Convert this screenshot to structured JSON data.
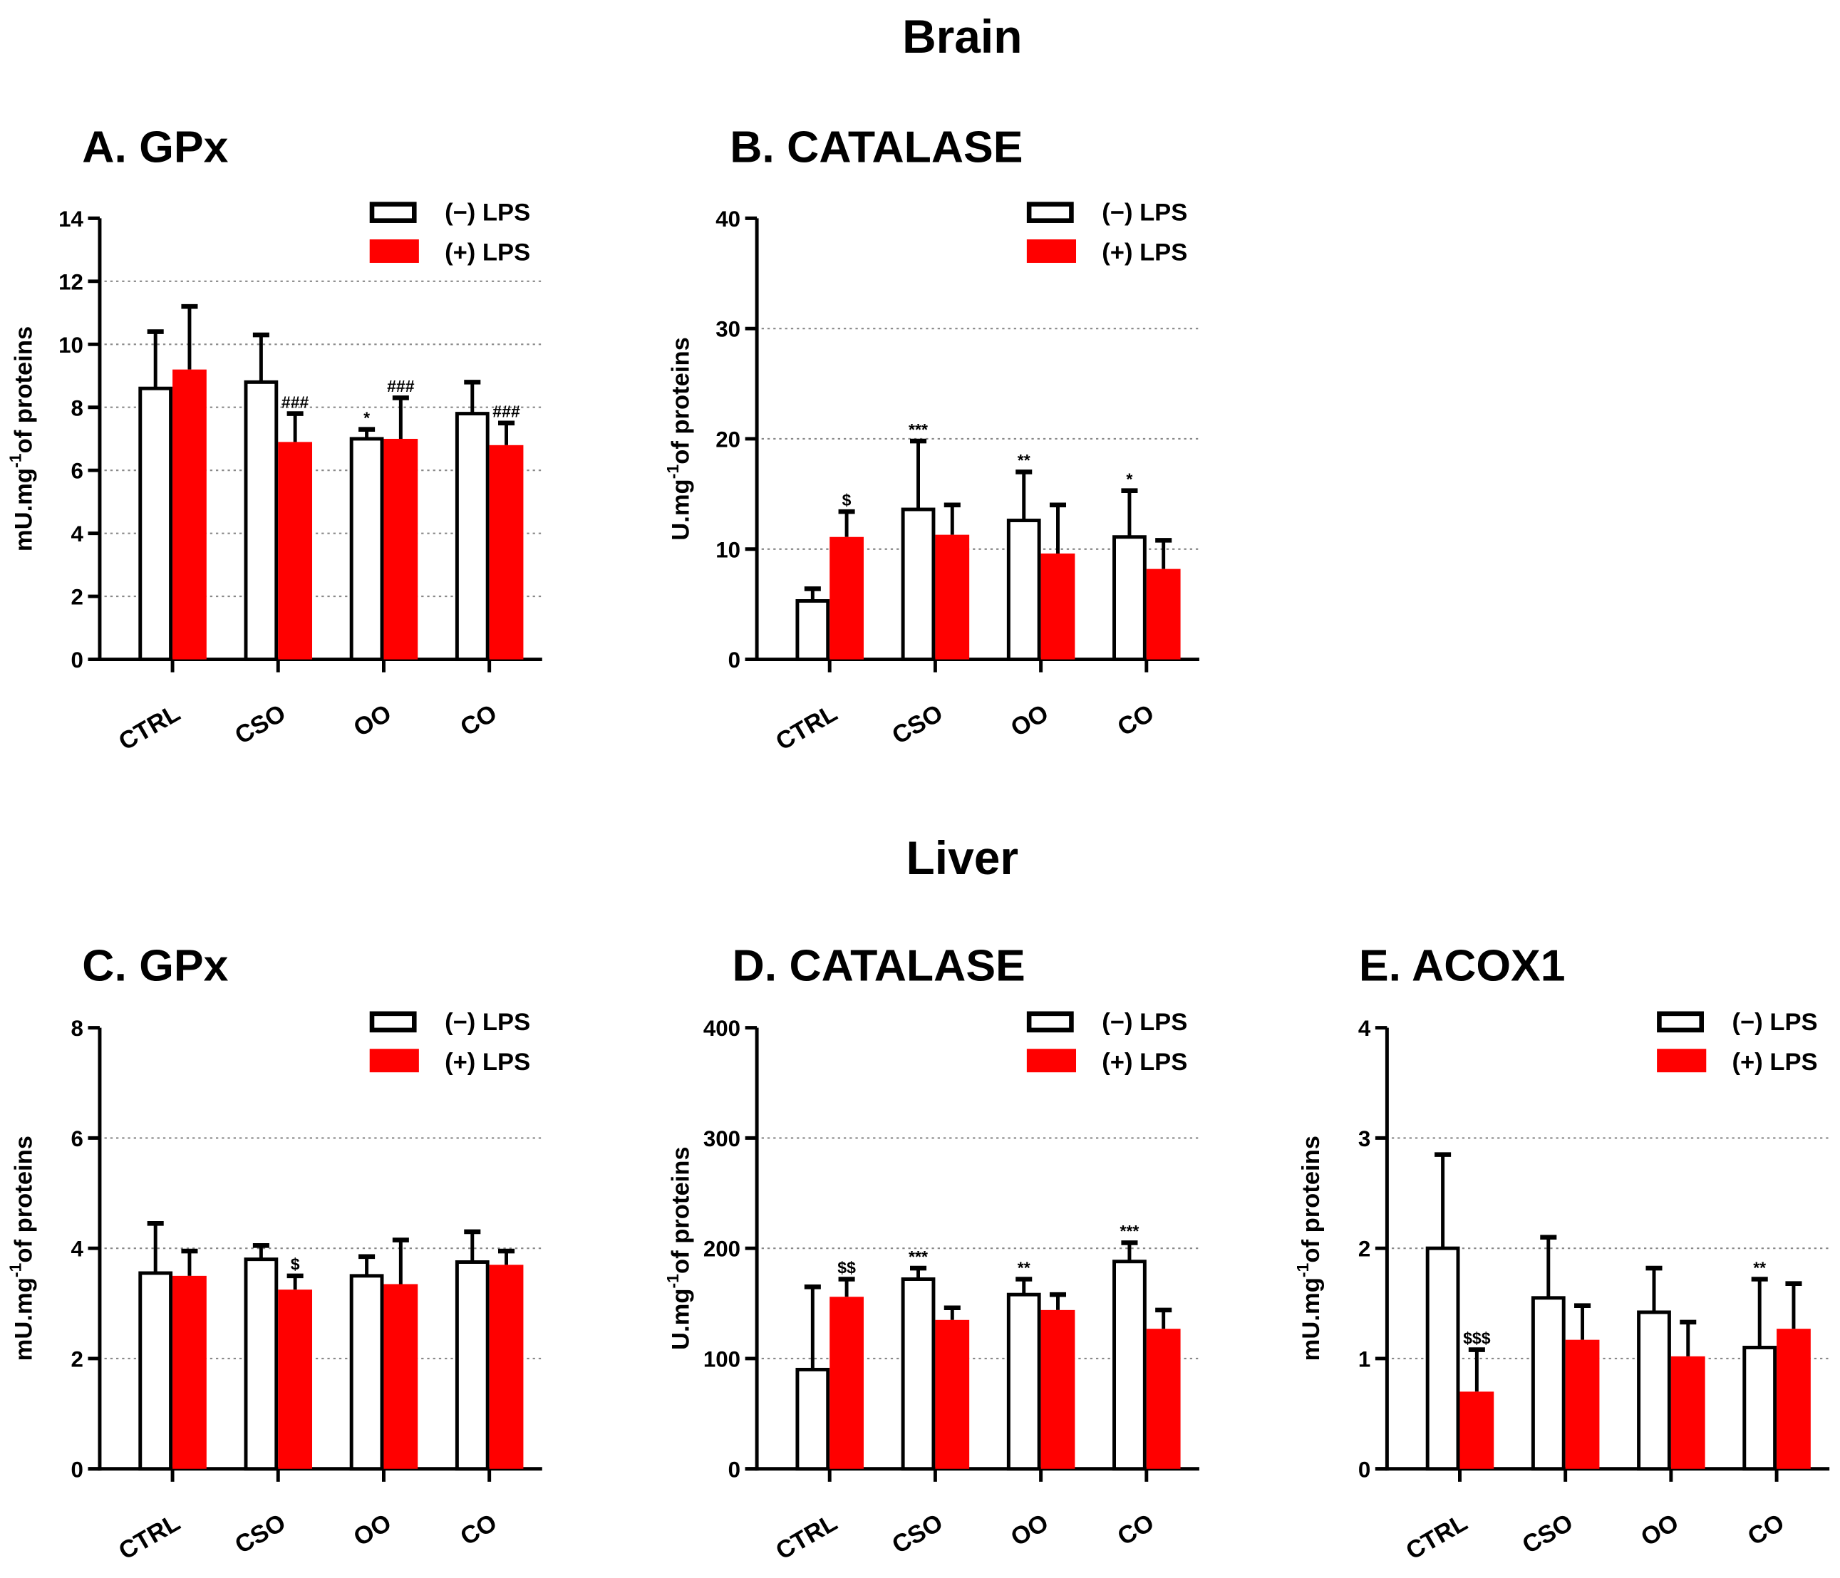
{
  "section_titles": [
    "Brain",
    "Liver"
  ],
  "legend": {
    "minus": "(−) LPS",
    "plus": "(+) LPS"
  },
  "colors": {
    "minus_fill": "#ffffff",
    "plus_fill": "#ff0000",
    "axis": "#000000",
    "grid": "#888888"
  },
  "chart_data": [
    {
      "type": "bar",
      "panel": "A",
      "section": "Brain",
      "title": "A. GPx",
      "ylabel": {
        "prefix": "mU.mg",
        "sup": "-1",
        "suffix": "of proteins"
      },
      "categories": [
        "CTRL",
        "CSO",
        "OO",
        "CO"
      ],
      "ylim": [
        0,
        14
      ],
      "yticks": [
        0,
        2,
        4,
        6,
        8,
        10,
        12,
        14
      ],
      "grid": true,
      "legend_position": "top-right",
      "series": [
        {
          "name": "(−) LPS",
          "values": [
            8.6,
            8.8,
            7.0,
            7.8
          ],
          "error_upper": [
            10.4,
            10.3,
            7.3,
            8.8
          ],
          "annotations": [
            "",
            "",
            "*",
            ""
          ]
        },
        {
          "name": "(+) LPS",
          "values": [
            9.2,
            6.9,
            7.0,
            6.8
          ],
          "error_upper": [
            11.2,
            7.8,
            8.3,
            7.5
          ],
          "annotations": [
            "",
            "###",
            "###",
            "###"
          ]
        }
      ]
    },
    {
      "type": "bar",
      "panel": "B",
      "section": "Brain",
      "title": "B. CATALASE",
      "ylabel": {
        "prefix": "U.mg",
        "sup": "-1",
        "suffix": "of proteins"
      },
      "categories": [
        "CTRL",
        "CSO",
        "OO",
        "CO"
      ],
      "ylim": [
        0,
        40
      ],
      "yticks": [
        0,
        10,
        20,
        30,
        40
      ],
      "grid": true,
      "legend_position": "top-right",
      "series": [
        {
          "name": "(−) LPS",
          "values": [
            5.3,
            13.6,
            12.6,
            11.1
          ],
          "error_upper": [
            6.4,
            19.8,
            17.0,
            15.3
          ],
          "annotations": [
            "",
            "***",
            "**",
            "*"
          ]
        },
        {
          "name": "(+) LPS",
          "values": [
            11.1,
            11.3,
            9.6,
            8.2
          ],
          "error_upper": [
            13.4,
            14.0,
            14.0,
            10.8
          ],
          "annotations": [
            "$",
            "",
            "",
            ""
          ]
        }
      ]
    },
    {
      "type": "bar",
      "panel": "C",
      "section": "Liver",
      "title": "C. GPx",
      "ylabel": {
        "prefix": "mU.mg",
        "sup": "-1",
        "suffix": "of proteins"
      },
      "categories": [
        "CTRL",
        "CSO",
        "OO",
        "CO"
      ],
      "ylim": [
        0,
        8
      ],
      "yticks": [
        0,
        2,
        4,
        6,
        8
      ],
      "grid": true,
      "legend_position": "top-right",
      "series": [
        {
          "name": "(−) LPS",
          "values": [
            3.55,
            3.8,
            3.5,
            3.75
          ],
          "error_upper": [
            4.45,
            4.05,
            3.85,
            4.3
          ],
          "annotations": [
            "",
            "",
            "",
            ""
          ]
        },
        {
          "name": "(+) LPS",
          "values": [
            3.5,
            3.25,
            3.35,
            3.7
          ],
          "error_upper": [
            3.95,
            3.5,
            4.15,
            3.95
          ],
          "annotations": [
            "",
            "$",
            "",
            ""
          ]
        }
      ]
    },
    {
      "type": "bar",
      "panel": "D",
      "section": "Liver",
      "title": "D. CATALASE",
      "ylabel": {
        "prefix": "U.mg",
        "sup": "-1",
        "suffix": "of proteins"
      },
      "categories": [
        "CTRL",
        "CSO",
        "OO",
        "CO"
      ],
      "ylim": [
        0,
        400
      ],
      "yticks": [
        0,
        100,
        200,
        300,
        400
      ],
      "grid": true,
      "legend_position": "top-right",
      "series": [
        {
          "name": "(−) LPS",
          "values": [
            90,
            172,
            158,
            188
          ],
          "error_upper": [
            165,
            182,
            172,
            205
          ],
          "annotations": [
            "",
            "***",
            "**",
            "***"
          ]
        },
        {
          "name": "(+) LPS",
          "values": [
            156,
            135,
            144,
            127
          ],
          "error_upper": [
            172,
            146,
            158,
            144
          ],
          "annotations": [
            "$$",
            "",
            "",
            ""
          ]
        }
      ]
    },
    {
      "type": "bar",
      "panel": "E",
      "section": "Liver",
      "title": "E. ACOX1",
      "ylabel": {
        "prefix": "mU.mg",
        "sup": "-1",
        "suffix": "of proteins"
      },
      "categories": [
        "CTRL",
        "CSO",
        "OO",
        "CO"
      ],
      "ylim": [
        0,
        4
      ],
      "yticks": [
        0,
        1,
        2,
        3,
        4
      ],
      "grid": true,
      "legend_position": "top-right",
      "series": [
        {
          "name": "(−) LPS",
          "values": [
            2.0,
            1.55,
            1.42,
            1.1
          ],
          "error_upper": [
            2.85,
            2.1,
            1.82,
            1.72
          ],
          "annotations": [
            "",
            "",
            "",
            "**"
          ]
        },
        {
          "name": "(+) LPS",
          "values": [
            0.7,
            1.17,
            1.02,
            1.27
          ],
          "error_upper": [
            1.08,
            1.48,
            1.33,
            1.68
          ],
          "annotations": [
            "$$$",
            "",
            "",
            ""
          ]
        }
      ]
    }
  ]
}
